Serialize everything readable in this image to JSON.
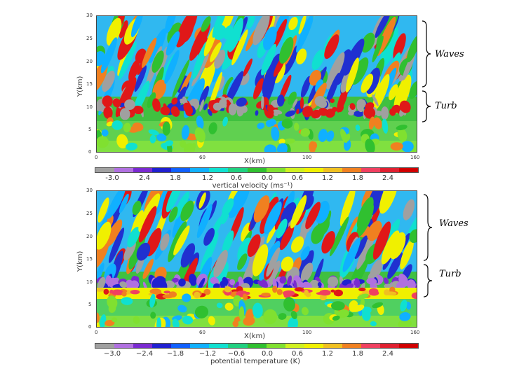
{
  "colorbar_colors": [
    "#a0a0a0",
    "#b070e0",
    "#7a2ad0",
    "#2020d0",
    "#1060ff",
    "#10b0ff",
    "#10e0d0",
    "#20d080",
    "#30c030",
    "#80e030",
    "#d0f020",
    "#f0f000",
    "#f0c020",
    "#f08020",
    "#f04060",
    "#e02030",
    "#d00000"
  ],
  "top": {
    "ylabel": "Y(km)",
    "xlabel": "X(km)",
    "y_ticks": [
      "30",
      "25",
      "20",
      "15",
      "10",
      "5",
      "0"
    ],
    "x_ticks": [
      "0",
      "60",
      "100",
      "160"
    ],
    "colorbar_labels": [
      "-3.0",
      "2.4",
      "1.8",
      "1.2",
      "0.6",
      "0.0",
      "0.6",
      "1.2",
      "1.8",
      "2.4"
    ],
    "colorbar_title": "vertical velocity (ms⁻¹)",
    "regions": [
      "Waves",
      "Turb"
    ]
  },
  "bottom": {
    "ylabel": "Y(km)",
    "xlabel": "X(km)",
    "y_ticks": [
      "30",
      "25",
      "20",
      "15",
      "10",
      "5",
      "0"
    ],
    "x_ticks": [
      "0",
      "60",
      "100",
      "160"
    ],
    "colorbar_labels": [
      "−3.0",
      "−2.4",
      "−1.8",
      "−1.2",
      "−0.6",
      "0.0",
      "0.6",
      "1.2",
      "1.8",
      "2.4"
    ],
    "colorbar_title": "potential temperature (K)",
    "regions": [
      "Waves",
      "Turb"
    ]
  }
}
